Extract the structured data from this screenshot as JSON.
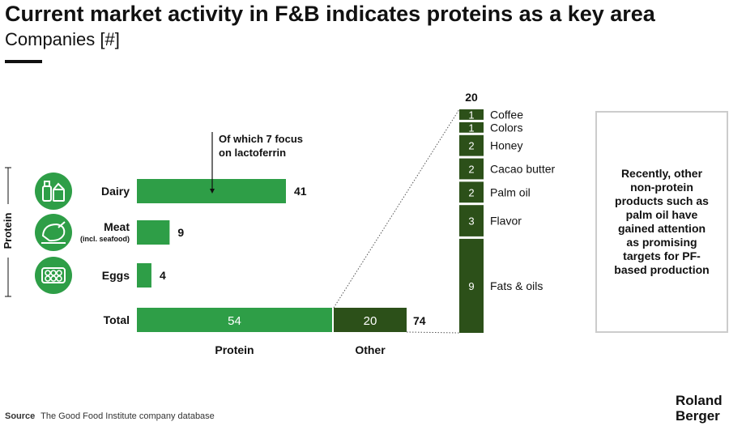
{
  "header": {
    "title": "Current market activity in F&B indicates proteins as a key area",
    "subtitle": "Companies [#]"
  },
  "chart_data": {
    "type": "bar",
    "protein_group_label": "Protein",
    "categories": [
      {
        "label": "Dairy",
        "sublabel": "",
        "value": 41,
        "icon": "milk-bottle-icon"
      },
      {
        "label": "Meat",
        "sublabel": "(incl. seafood)",
        "value": 9,
        "icon": "chicken-icon"
      },
      {
        "label": "Eggs",
        "sublabel": "",
        "value": 4,
        "icon": "egg-carton-icon"
      }
    ],
    "total": {
      "label": "Total",
      "protein": 54,
      "other": 20,
      "sum": 74
    },
    "x_labels": [
      "Protein",
      "Other"
    ],
    "annotation": "Of which 7 focus on lactoferrin",
    "other_breakdown": {
      "total": 20,
      "items": [
        {
          "label": "Coffee",
          "value": 1
        },
        {
          "label": "Colors",
          "value": 1
        },
        {
          "label": "Honey",
          "value": 2
        },
        {
          "label": "Cacao butter",
          "value": 2
        },
        {
          "label": "Palm oil",
          "value": 2
        },
        {
          "label": "Flavor",
          "value": 3
        },
        {
          "label": "Fats & oils",
          "value": 9
        }
      ]
    },
    "colors": {
      "protein": "#2e9e47",
      "other": "#2c5019"
    }
  },
  "note": "Recently, other non-protein products such as palm oil have gained attention as promising targets for PF-based production",
  "footer": {
    "source_label": "Source",
    "source_text": "The Good Food Institute company database",
    "logo_line1": "Roland",
    "logo_line2": "Berger"
  }
}
